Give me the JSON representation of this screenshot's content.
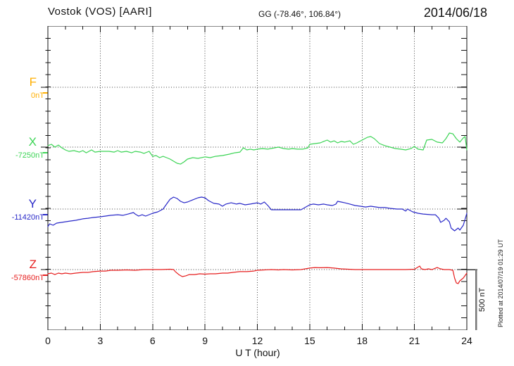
{
  "header": {
    "title": "Vostok (VOS)  [AARI]",
    "coords": "GG (-78.46°, 106.84°)",
    "date": "2014/06/18"
  },
  "x_axis": {
    "label": "U T (hour)",
    "ticks": [
      "0",
      "3",
      "6",
      "9",
      "12",
      "15",
      "18",
      "21",
      "24"
    ]
  },
  "scale_bar": {
    "label": "500 nT"
  },
  "footer_note": "Plotted at 2014/07/19 01:29 UT",
  "components": [
    {
      "id": "F",
      "label": "F",
      "baseline_label": "0nT",
      "color": "#FFAF00"
    },
    {
      "id": "X",
      "label": "X",
      "baseline_label": "-7250nT",
      "color": "#3CD455"
    },
    {
      "id": "Y",
      "label": "Y",
      "baseline_label": "-11420nT",
      "color": "#2828C8"
    },
    {
      "id": "Z",
      "label": "Z",
      "baseline_label": "-57860nT",
      "color": "#E61E1E"
    }
  ],
  "chart_data": {
    "type": "line",
    "title": "Vostok (VOS) [AARI] magnetogram 2014/06/18",
    "xlabel": "U T (hour)",
    "x_range": [
      0,
      24
    ],
    "x_major_tick_step": 3,
    "x_minor_tick_step": 1,
    "grid": "dotted at 3-hour marks and component baselines",
    "scale_division_nT": 500,
    "minor_division_nT": 100,
    "note": "y values are deviations in nT from each component baseline; F trace has no plotted data (baseline only)",
    "series": [
      {
        "name": "F",
        "baseline_label": "0nT",
        "color": "#FFAF00",
        "points": []
      },
      {
        "name": "X",
        "baseline_label": "-7250nT",
        "color": "#3CD455",
        "points": [
          [
            0,
            12
          ],
          [
            0.2,
            23
          ],
          [
            0.4,
            0
          ],
          [
            0.6,
            17
          ],
          [
            0.8,
            -6
          ],
          [
            1,
            -23
          ],
          [
            1.2,
            -35
          ],
          [
            1.5,
            -29
          ],
          [
            1.8,
            -41
          ],
          [
            2,
            -29
          ],
          [
            2.2,
            -47
          ],
          [
            2.5,
            -23
          ],
          [
            2.7,
            -41
          ],
          [
            3,
            -35
          ],
          [
            3.5,
            -35
          ],
          [
            3.8,
            -41
          ],
          [
            4,
            -29
          ],
          [
            4.2,
            -41
          ],
          [
            4.5,
            -35
          ],
          [
            4.8,
            -47
          ],
          [
            5,
            -35
          ],
          [
            5.3,
            -41
          ],
          [
            5.5,
            -52
          ],
          [
            5.8,
            -35
          ],
          [
            6,
            -76
          ],
          [
            6.2,
            -70
          ],
          [
            6.4,
            -87
          ],
          [
            6.6,
            -76
          ],
          [
            6.8,
            -87
          ],
          [
            7,
            -99
          ],
          [
            7.2,
            -116
          ],
          [
            7.4,
            -134
          ],
          [
            7.6,
            -140
          ],
          [
            7.8,
            -122
          ],
          [
            8,
            -99
          ],
          [
            8.3,
            -87
          ],
          [
            8.6,
            -93
          ],
          [
            9,
            -81
          ],
          [
            9.3,
            -87
          ],
          [
            9.6,
            -76
          ],
          [
            10,
            -70
          ],
          [
            10.4,
            -58
          ],
          [
            10.7,
            -47
          ],
          [
            11,
            -41
          ],
          [
            11.2,
            -6
          ],
          [
            11.4,
            -23
          ],
          [
            11.6,
            -17
          ],
          [
            11.8,
            -23
          ],
          [
            12,
            -17
          ],
          [
            12.3,
            -12
          ],
          [
            12.6,
            -17
          ],
          [
            13,
            -6
          ],
          [
            13.2,
            0
          ],
          [
            13.5,
            -12
          ],
          [
            13.8,
            -17
          ],
          [
            14,
            -12
          ],
          [
            14.3,
            -17
          ],
          [
            14.6,
            -17
          ],
          [
            14.9,
            -6
          ],
          [
            15,
            23
          ],
          [
            15.3,
            29
          ],
          [
            15.6,
            35
          ],
          [
            15.8,
            47
          ],
          [
            16,
            58
          ],
          [
            16.2,
            41
          ],
          [
            16.4,
            52
          ],
          [
            16.6,
            35
          ],
          [
            16.8,
            47
          ],
          [
            17,
            41
          ],
          [
            17.3,
            52
          ],
          [
            17.5,
            23
          ],
          [
            17.7,
            35
          ],
          [
            18,
            58
          ],
          [
            18.3,
            81
          ],
          [
            18.5,
            87
          ],
          [
            18.7,
            70
          ],
          [
            19,
            29
          ],
          [
            19.3,
            12
          ],
          [
            19.6,
            0
          ],
          [
            19.9,
            -12
          ],
          [
            20.2,
            -17
          ],
          [
            20.5,
            -23
          ],
          [
            20.8,
            -12
          ],
          [
            21,
            6
          ],
          [
            21.2,
            -17
          ],
          [
            21.5,
            -23
          ],
          [
            21.7,
            58
          ],
          [
            22,
            64
          ],
          [
            22.3,
            41
          ],
          [
            22.6,
            35
          ],
          [
            22.8,
            70
          ],
          [
            23,
            116
          ],
          [
            23.2,
            110
          ],
          [
            23.4,
            70
          ],
          [
            23.6,
            41
          ],
          [
            23.8,
            76
          ],
          [
            23.9,
            87
          ],
          [
            24,
            -23
          ]
        ]
      },
      {
        "name": "Y",
        "baseline_label": "-11420nT",
        "color": "#2828C8",
        "points": [
          [
            0,
            -145
          ],
          [
            0.1,
            -122
          ],
          [
            0.3,
            -134
          ],
          [
            0.5,
            -116
          ],
          [
            0.8,
            -110
          ],
          [
            1,
            -105
          ],
          [
            1.3,
            -99
          ],
          [
            1.6,
            -93
          ],
          [
            2,
            -81
          ],
          [
            2.3,
            -76
          ],
          [
            2.6,
            -70
          ],
          [
            3,
            -64
          ],
          [
            3.3,
            -58
          ],
          [
            3.6,
            -52
          ],
          [
            4,
            -47
          ],
          [
            4.3,
            -52
          ],
          [
            4.6,
            -41
          ],
          [
            4.9,
            -29
          ],
          [
            5,
            -41
          ],
          [
            5.2,
            -58
          ],
          [
            5.4,
            -47
          ],
          [
            5.6,
            -58
          ],
          [
            6,
            -35
          ],
          [
            6.3,
            -23
          ],
          [
            6.6,
            0
          ],
          [
            6.8,
            41
          ],
          [
            7,
            81
          ],
          [
            7.2,
            99
          ],
          [
            7.4,
            87
          ],
          [
            7.6,
            64
          ],
          [
            7.8,
            52
          ],
          [
            8,
            58
          ],
          [
            8.3,
            76
          ],
          [
            8.6,
            93
          ],
          [
            8.8,
            99
          ],
          [
            9,
            93
          ],
          [
            9.2,
            70
          ],
          [
            9.5,
            47
          ],
          [
            9.8,
            41
          ],
          [
            10,
            23
          ],
          [
            10.2,
            41
          ],
          [
            10.5,
            52
          ],
          [
            10.8,
            41
          ],
          [
            11,
            47
          ],
          [
            11.3,
            35
          ],
          [
            11.6,
            41
          ],
          [
            12,
            52
          ],
          [
            12.2,
            41
          ],
          [
            12.4,
            58
          ],
          [
            12.6,
            29
          ],
          [
            12.8,
            -6
          ],
          [
            13,
            -6
          ],
          [
            13.5,
            -6
          ],
          [
            14,
            -6
          ],
          [
            14.5,
            -6
          ],
          [
            15,
            35
          ],
          [
            15.2,
            41
          ],
          [
            15.5,
            35
          ],
          [
            15.8,
            41
          ],
          [
            16,
            35
          ],
          [
            16.3,
            29
          ],
          [
            16.5,
            41
          ],
          [
            16.6,
            64
          ],
          [
            16.8,
            58
          ],
          [
            17,
            52
          ],
          [
            17.3,
            41
          ],
          [
            17.6,
            29
          ],
          [
            17.9,
            23
          ],
          [
            18.2,
            17
          ],
          [
            18.5,
            23
          ],
          [
            18.8,
            17
          ],
          [
            19,
            12
          ],
          [
            19.3,
            12
          ],
          [
            19.6,
            6
          ],
          [
            20,
            0
          ],
          [
            20.3,
            0
          ],
          [
            20.5,
            -17
          ],
          [
            20.6,
            0
          ],
          [
            20.9,
            -23
          ],
          [
            21.2,
            -35
          ],
          [
            21.5,
            -41
          ],
          [
            22,
            -47
          ],
          [
            22.2,
            -47
          ],
          [
            22.4,
            -76
          ],
          [
            22.5,
            -110
          ],
          [
            22.7,
            -93
          ],
          [
            22.8,
            -76
          ],
          [
            23,
            -105
          ],
          [
            23.1,
            -157
          ],
          [
            23.3,
            -180
          ],
          [
            23.5,
            -157
          ],
          [
            23.6,
            -174
          ],
          [
            23.8,
            -134
          ],
          [
            24,
            -35
          ]
        ]
      },
      {
        "name": "Z",
        "baseline_label": "-57860nT",
        "color": "#E61E1E",
        "points": [
          [
            0,
            -35
          ],
          [
            0.2,
            -29
          ],
          [
            0.4,
            -41
          ],
          [
            0.6,
            -29
          ],
          [
            0.8,
            -35
          ],
          [
            1,
            -29
          ],
          [
            1.3,
            -35
          ],
          [
            1.6,
            -29
          ],
          [
            2,
            -23
          ],
          [
            2.3,
            -23
          ],
          [
            2.6,
            -17
          ],
          [
            3,
            -12
          ],
          [
            3.3,
            -12
          ],
          [
            3.6,
            -6
          ],
          [
            4,
            -6
          ],
          [
            4.5,
            -3
          ],
          [
            5,
            -6
          ],
          [
            5.5,
            0
          ],
          [
            6,
            0
          ],
          [
            6.5,
            0
          ],
          [
            7,
            3
          ],
          [
            7.2,
            0
          ],
          [
            7.3,
            -17
          ],
          [
            7.5,
            -41
          ],
          [
            7.7,
            -58
          ],
          [
            7.9,
            -52
          ],
          [
            8.1,
            -41
          ],
          [
            8.4,
            -41
          ],
          [
            8.7,
            -35
          ],
          [
            9,
            -38
          ],
          [
            9.3,
            -35
          ],
          [
            9.6,
            -35
          ],
          [
            10,
            -29
          ],
          [
            10.3,
            -29
          ],
          [
            10.6,
            -23
          ],
          [
            11,
            -17
          ],
          [
            11.4,
            -17
          ],
          [
            11.8,
            -12
          ],
          [
            12,
            -6
          ],
          [
            12.4,
            -3
          ],
          [
            12.8,
            0
          ],
          [
            13.2,
            -3
          ],
          [
            13.5,
            0
          ],
          [
            14,
            -3
          ],
          [
            14.5,
            0
          ],
          [
            15,
            12
          ],
          [
            15.3,
            17
          ],
          [
            15.6,
            15
          ],
          [
            16,
            17
          ],
          [
            16.4,
            12
          ],
          [
            16.8,
            6
          ],
          [
            17.2,
            3
          ],
          [
            17.6,
            0
          ],
          [
            18,
            0
          ],
          [
            18.5,
            0
          ],
          [
            19,
            0
          ],
          [
            19.5,
            0
          ],
          [
            20,
            0
          ],
          [
            20.5,
            0
          ],
          [
            21,
            3
          ],
          [
            21.3,
            29
          ],
          [
            21.4,
            6
          ],
          [
            21.6,
            0
          ],
          [
            21.8,
            6
          ],
          [
            22,
            0
          ],
          [
            22.3,
            17
          ],
          [
            22.5,
            6
          ],
          [
            22.7,
            0
          ],
          [
            23,
            0
          ],
          [
            23.2,
            -6
          ],
          [
            23.3,
            -70
          ],
          [
            23.4,
            -110
          ],
          [
            23.5,
            -116
          ],
          [
            23.6,
            -93
          ],
          [
            23.8,
            -70
          ],
          [
            24,
            -29
          ]
        ]
      }
    ]
  }
}
